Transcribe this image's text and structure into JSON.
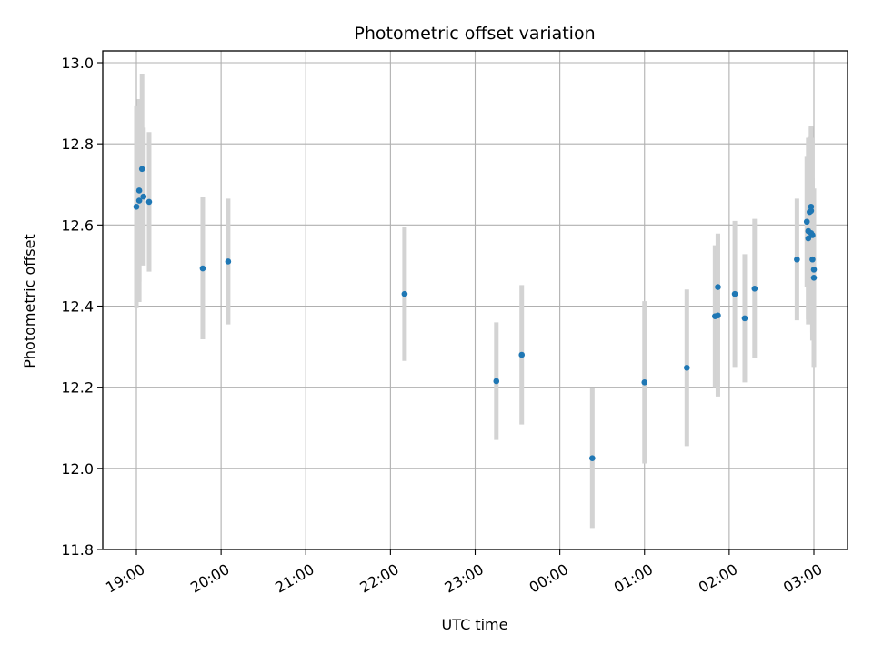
{
  "chart_data": {
    "type": "scatter",
    "title": "Photometric offset variation",
    "xlabel": "UTC time",
    "ylabel": "Photometric offset",
    "x_ticks": [
      "19:00",
      "20:00",
      "21:00",
      "22:00",
      "23:00",
      "00:00",
      "01:00",
      "02:00",
      "03:00"
    ],
    "y_ticks": [
      "11.8",
      "12.0",
      "12.2",
      "12.4",
      "12.6",
      "12.8",
      "13.0"
    ],
    "xlim_hours": [
      18.6,
      27.4
    ],
    "ylim": [
      11.8,
      13.03
    ],
    "grid": true,
    "point_color": "#1f77b4",
    "errorbar_color": "#d3d3d3",
    "points": [
      {
        "t": "19:00",
        "y": 12.645,
        "err": 0.25
      },
      {
        "t": "19:02",
        "y": 12.66,
        "err": 0.25
      },
      {
        "t": "19:02",
        "y": 12.685,
        "err": 0.225
      },
      {
        "t": "19:04",
        "y": 12.738,
        "err": 0.235
      },
      {
        "t": "19:05",
        "y": 12.67,
        "err": 0.17
      },
      {
        "t": "19:09",
        "y": 12.657,
        "err": 0.172
      },
      {
        "t": "19:47",
        "y": 12.493,
        "err": 0.175
      },
      {
        "t": "20:05",
        "y": 12.51,
        "err": 0.155
      },
      {
        "t": "22:10",
        "y": 12.43,
        "err": 0.165
      },
      {
        "t": "23:15",
        "y": 12.215,
        "err": 0.145
      },
      {
        "t": "23:33",
        "y": 12.28,
        "err": 0.172
      },
      {
        "t": "00:23",
        "y": 12.025,
        "err": 0.172
      },
      {
        "t": "01:00",
        "y": 12.212,
        "err": 0.2
      },
      {
        "t": "01:30",
        "y": 12.248,
        "err": 0.193
      },
      {
        "t": "01:50",
        "y": 12.375,
        "err": 0.175
      },
      {
        "t": "01:52",
        "y": 12.377,
        "err": 0.2
      },
      {
        "t": "01:52",
        "y": 12.447,
        "err": 0.132
      },
      {
        "t": "02:04",
        "y": 12.43,
        "err": 0.18
      },
      {
        "t": "02:11",
        "y": 12.37,
        "err": 0.158
      },
      {
        "t": "02:18",
        "y": 12.443,
        "err": 0.172
      },
      {
        "t": "02:48",
        "y": 12.515,
        "err": 0.15
      },
      {
        "t": "02:55",
        "y": 12.608,
        "err": 0.16
      },
      {
        "t": "02:56",
        "y": 12.567,
        "err": 0.2
      },
      {
        "t": "02:56",
        "y": 12.585,
        "err": 0.23
      },
      {
        "t": "02:57",
        "y": 12.632,
        "err": 0.185
      },
      {
        "t": "02:58",
        "y": 12.645,
        "err": 0.2
      },
      {
        "t": "02:58",
        "y": 12.635,
        "err": 0.205
      },
      {
        "t": "02:58",
        "y": 12.58,
        "err": 0.18
      },
      {
        "t": "02:59",
        "y": 12.575,
        "err": 0.24
      },
      {
        "t": "02:59",
        "y": 12.515,
        "err": 0.2
      },
      {
        "t": "03:00",
        "y": 12.49,
        "err": 0.18
      },
      {
        "t": "03:00",
        "y": 12.47,
        "err": 0.22
      }
    ]
  }
}
